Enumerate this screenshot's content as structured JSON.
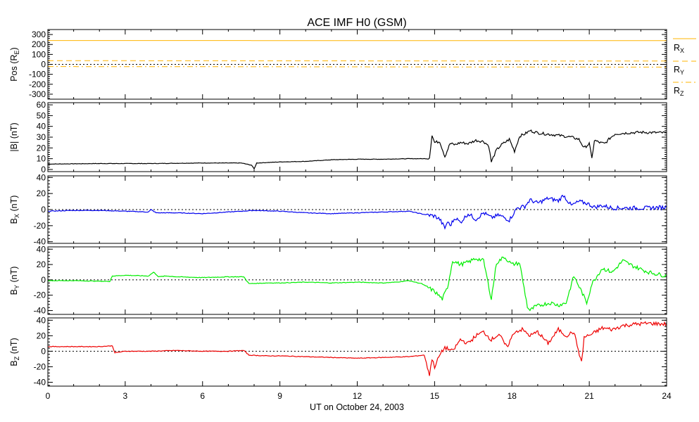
{
  "chart_data": {
    "type": "line",
    "title": "ACE IMF H0 (GSM)",
    "xlabel": "UT on October 24, 2003",
    "x_ticks": [
      "0",
      "3",
      "6",
      "9",
      "12",
      "15",
      "18",
      "21",
      "24"
    ],
    "xlim": [
      0,
      24
    ],
    "panels": [
      {
        "name": "position",
        "ylabel_main": "Pos (R",
        "ylabel_sub": "E",
        "ylabel_end": ")",
        "ylim": [
          -350,
          350
        ],
        "y_ticks": [
          -300,
          -200,
          -100,
          0,
          100,
          200,
          300
        ],
        "zero_line": true,
        "series": [
          {
            "name": "RX",
            "label_main": "R",
            "label_sub": "X",
            "color": "#ffb400",
            "style": "solid",
            "x": [
              0,
              24
            ],
            "y": [
              240,
              238
            ]
          },
          {
            "name": "RY",
            "label_main": "R",
            "label_sub": "Y",
            "color": "#ffb400",
            "style": "dashed",
            "x": [
              0,
              24
            ],
            "y": [
              37,
              33
            ]
          },
          {
            "name": "RZ",
            "label_main": "R",
            "label_sub": "Z",
            "color": "#ffb400",
            "style": "dashdot",
            "x": [
              0,
              24
            ],
            "y": [
              -22,
              -28
            ]
          }
        ]
      },
      {
        "name": "btotal",
        "ylabel_main": "|B| (nT)",
        "ylabel_sub": "",
        "ylabel_end": "",
        "ylim": [
          -2,
          62
        ],
        "y_ticks": [
          0,
          10,
          20,
          30,
          40,
          50,
          60
        ],
        "zero_line": false,
        "series": [
          {
            "name": "|B|",
            "color": "#000000",
            "style": "solid",
            "x": [
              0,
              2,
              4,
              6,
              7.5,
              7.9,
              8.0,
              8.1,
              9,
              10,
              11,
              12,
              13,
              14,
              14.7,
              14.8,
              14.9,
              15.0,
              15.2,
              15.4,
              15.6,
              15.8,
              16.0,
              16.3,
              16.6,
              16.9,
              17.1,
              17.2,
              17.4,
              17.6,
              17.9,
              18.1,
              18.3,
              18.5,
              18.7,
              19.0,
              19.3,
              19.7,
              20.0,
              20.3,
              20.6,
              20.8,
              21.0,
              21.1,
              21.2,
              21.4,
              21.6,
              21.8,
              22.0,
              22.5,
              23,
              24
            ],
            "y": [
              5,
              5.5,
              5.5,
              6,
              6,
              4,
              0.5,
              6,
              7,
              7.5,
              9,
              9.5,
              9.5,
              10,
              10,
              11,
              32,
              25,
              26,
              12,
              24,
              23,
              25,
              24,
              27,
              26,
              22,
              7,
              18,
              23,
              28,
              17,
              31,
              33,
              36,
              34,
              33,
              32,
              31,
              30,
              28,
              20,
              24,
              10,
              27,
              25,
              24,
              29,
              33,
              34,
              34.5,
              34
            ]
          }
        ]
      },
      {
        "name": "bx",
        "ylabel_main": "B",
        "ylabel_sub": "X",
        "ylabel_end": " (nT)",
        "ylim": [
          -42,
          42
        ],
        "y_ticks": [
          -40,
          -20,
          0,
          20,
          40
        ],
        "zero_line": true,
        "series": [
          {
            "name": "Bx",
            "color": "#0000ee",
            "style": "solid",
            "x": [
              0,
              1,
              2,
              3,
              3.9,
              4.0,
              4.2,
              5,
              6,
              7,
              8,
              9,
              10,
              11,
              12,
              13,
              14,
              14.6,
              15.0,
              15.2,
              15.4,
              15.5,
              15.6,
              15.8,
              16.0,
              16.3,
              16.6,
              16.9,
              17.2,
              17.5,
              17.9,
              18.2,
              18.5,
              18.7,
              19.0,
              19.4,
              19.8,
              20.0,
              20.3,
              20.6,
              20.9,
              21.2,
              21.5,
              21.9,
              22.5,
              23.2,
              24
            ],
            "y": [
              -2,
              -1,
              -1,
              -2,
              -3,
              0,
              -4,
              -4,
              -5,
              -3,
              -1,
              -2,
              -4,
              -5,
              -4,
              -3,
              -2,
              -6,
              -8,
              -12,
              -23,
              -15,
              -20,
              -10,
              -16,
              -5,
              -12,
              -4,
              -10,
              -7,
              -13,
              2,
              4,
              12,
              8,
              14,
              11,
              18,
              5,
              10,
              8,
              3,
              5,
              2,
              2,
              2,
              3
            ]
          }
        ]
      },
      {
        "name": "by",
        "ylabel_main": "B",
        "ylabel_sub": "Y",
        "ylabel_end": " (nT)",
        "ylim": [
          -45,
          43
        ],
        "y_ticks": [
          -40,
          -20,
          0,
          20,
          40
        ],
        "zero_line": true,
        "series": [
          {
            "name": "By",
            "color": "#00ee00",
            "style": "solid",
            "x": [
              0,
              1,
              2.4,
              2.5,
              3,
              3.9,
              4.1,
              4.3,
              4.6,
              5,
              6,
              7,
              7.6,
              7.8,
              8.5,
              9,
              10,
              11,
              12,
              13,
              13.5,
              14,
              14.5,
              15.0,
              15.3,
              15.5,
              15.7,
              16.0,
              16.3,
              16.6,
              16.9,
              17.2,
              17.4,
              17.7,
              18.0,
              18.3,
              18.6,
              18.7,
              18.9,
              19.2,
              19.5,
              19.8,
              20.1,
              20.4,
              20.7,
              20.9,
              21.1,
              21.5,
              21.9,
              22.3,
              22.7,
              23.3,
              24
            ],
            "y": [
              -1,
              -1,
              -2,
              5,
              6,
              5,
              10,
              4,
              5,
              4,
              3,
              4,
              4,
              -5,
              -4,
              -4,
              -3,
              -4,
              -3,
              -4,
              -3,
              -1,
              -5,
              -15,
              -25,
              -10,
              25,
              20,
              23,
              28,
              25,
              -25,
              22,
              30,
              20,
              22,
              -35,
              -40,
              -35,
              -32,
              -30,
              -33,
              -30,
              5,
              -15,
              -30,
              -5,
              15,
              10,
              25,
              18,
              10,
              5
            ]
          }
        ]
      },
      {
        "name": "bz",
        "ylabel_main": "B",
        "ylabel_sub": "Z",
        "ylabel_end": " (nT)",
        "ylim": [
          -45,
          43
        ],
        "y_ticks": [
          -40,
          -20,
          0,
          20,
          40
        ],
        "zero_line": true,
        "series": [
          {
            "name": "Bz",
            "color": "#ee0000",
            "style": "solid",
            "x": [
              0,
              1,
              2,
              2.5,
              2.6,
              3,
              4,
              5,
              6,
              7,
              7.6,
              7.8,
              8.5,
              9,
              10,
              11,
              12,
              13,
              14,
              14.6,
              14.8,
              14.9,
              15.0,
              15.2,
              15.4,
              15.7,
              16.0,
              16.3,
              16.6,
              16.9,
              17.2,
              17.5,
              17.8,
              18.1,
              18.4,
              18.7,
              19.0,
              19.4,
              19.8,
              20.1,
              20.4,
              20.7,
              20.8,
              21.1,
              21.5,
              21.9,
              22.3,
              22.8,
              23.3,
              24
            ],
            "y": [
              6,
              6,
              6,
              7,
              -2,
              0,
              0,
              1,
              0,
              0,
              1,
              -5,
              -6,
              -6,
              -7,
              -8,
              -9,
              -8,
              -7,
              -5,
              -30,
              -10,
              -20,
              -5,
              5,
              0,
              15,
              10,
              20,
              25,
              15,
              22,
              5,
              25,
              28,
              20,
              25,
              10,
              28,
              20,
              25,
              -15,
              18,
              22,
              30,
              28,
              33,
              35,
              36,
              35
            ]
          }
        ]
      }
    ]
  }
}
